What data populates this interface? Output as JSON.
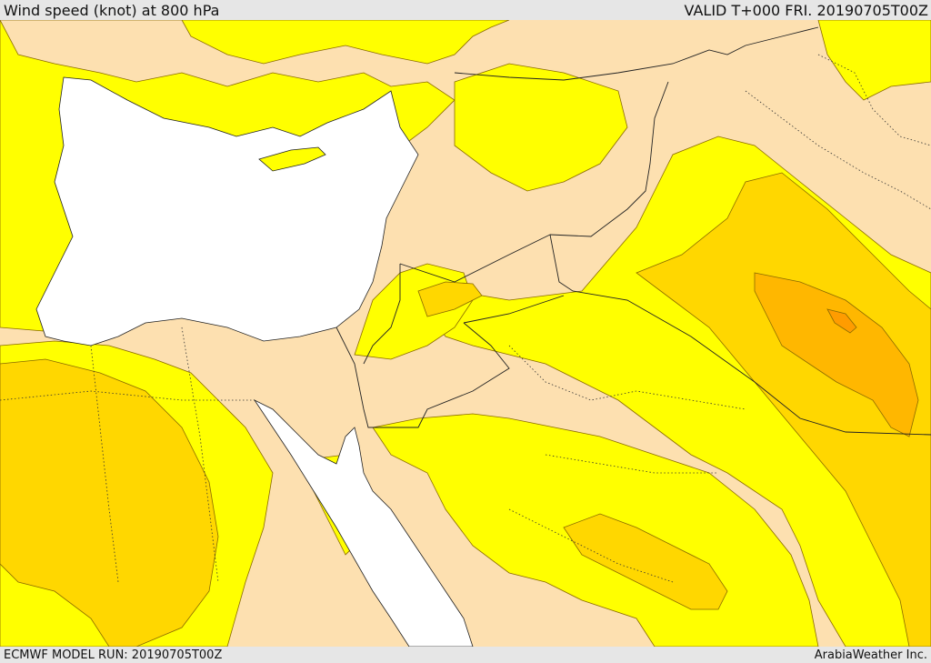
{
  "header": {
    "title": "Wind speed (knot) at 800 hPa",
    "valid": "VALID T+000 FRI. 20190705T00Z"
  },
  "footer": {
    "model_run": "ECMWF MODEL RUN: 20190705T00Z",
    "credit": "ArabiaWeather Inc."
  },
  "colors": {
    "sea": "#ffffff",
    "calm_land": "#fde0b0",
    "band_1": "#ffff00",
    "band_2": "#ffd700",
    "band_3": "#ffb700",
    "band_4": "#ff9c00",
    "contour": "#8a6a00",
    "border": "#222222"
  }
}
